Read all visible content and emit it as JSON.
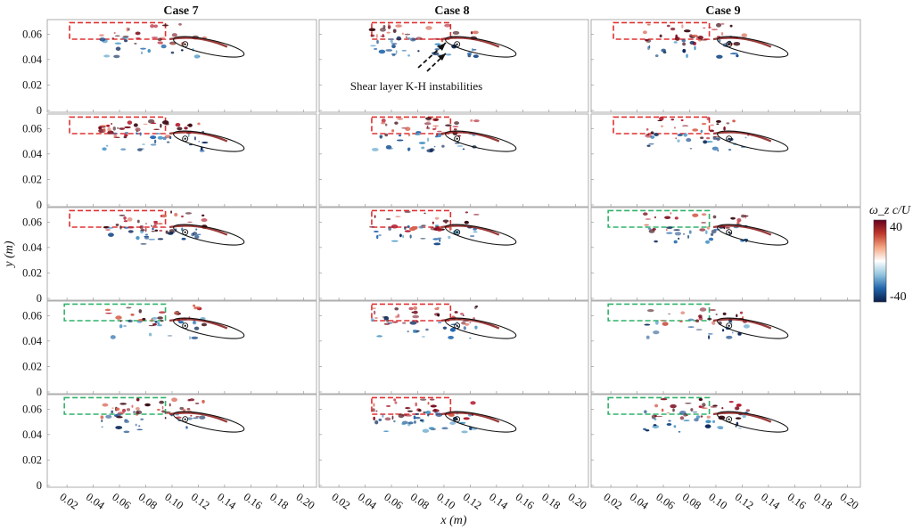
{
  "figure": {
    "column_titles": [
      "Case 7",
      "Case 8",
      "Case 9"
    ],
    "x_axis_label": "x (m)",
    "y_axis_label": "y (m)",
    "x_ticks": [
      "0.02",
      "0.04",
      "0.06",
      "0.08",
      "0.10",
      "0.12",
      "0.14",
      "0.16",
      "0.18",
      "0.20"
    ],
    "y_ticks": [
      "0",
      "0.02",
      "0.04",
      "0.06"
    ],
    "annotation": "Shear layer K-H instabilities",
    "colorbar": {
      "label": "ω_z c/U",
      "max_label": "40",
      "min_label": "-40",
      "colors": [
        "#67001f",
        "#c0392b",
        "#f4a582",
        "#ffffff",
        "#92c5de",
        "#2166ac",
        "#0b1f4a"
      ]
    },
    "box_colors": {
      "red": "#e03131",
      "green": "#2fb36a"
    },
    "panel_box_colors": [
      [
        "red",
        "red",
        "red"
      ],
      [
        "red",
        "red",
        "red"
      ],
      [
        "red",
        "red",
        "green"
      ],
      [
        "green",
        "red",
        "green"
      ],
      [
        "green",
        "red",
        "green"
      ]
    ]
  }
}
